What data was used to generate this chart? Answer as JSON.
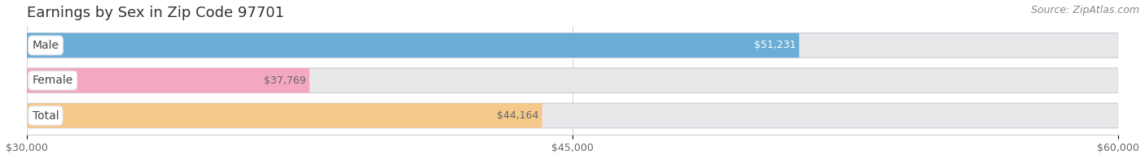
{
  "title": "Earnings by Sex in Zip Code 97701",
  "source": "Source: ZipAtlas.com",
  "categories": [
    "Male",
    "Female",
    "Total"
  ],
  "values": [
    51231,
    37769,
    44164
  ],
  "bar_colors": [
    "#6aaed6",
    "#f4a8bf",
    "#f5c98a"
  ],
  "bar_bg_color": "#e8e8eb",
  "bar_border_color": "#d0d0d8",
  "value_label_colors": [
    "#ffffff",
    "#666666",
    "#666666"
  ],
  "xmin": 30000,
  "xmax": 60000,
  "xticks": [
    30000,
    45000,
    60000
  ],
  "xtick_labels": [
    "$30,000",
    "$45,000",
    "$60,000"
  ],
  "title_fontsize": 13,
  "source_fontsize": 9,
  "bar_label_fontsize": 9,
  "cat_label_fontsize": 10,
  "figsize": [
    14.06,
    1.96
  ],
  "dpi": 100
}
